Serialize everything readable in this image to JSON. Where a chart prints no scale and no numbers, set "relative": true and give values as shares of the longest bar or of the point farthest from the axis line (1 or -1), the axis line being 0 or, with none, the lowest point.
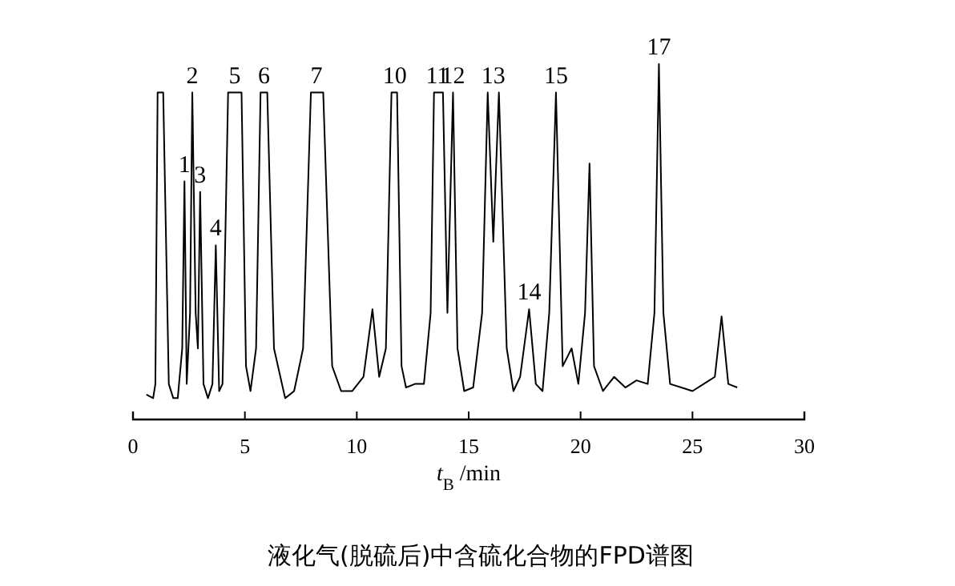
{
  "chart_data": {
    "type": "line",
    "relative": true,
    "xlabel": "t$_{B}$ /min",
    "xlim": [
      0,
      30
    ],
    "xticks": [
      0,
      5,
      10,
      15,
      20,
      25,
      30
    ],
    "series": [
      {
        "color": "#000000",
        "x": [
          0.6,
          0.9,
          1.0,
          1.1,
          1.35,
          1.6,
          1.8,
          2.0,
          2.2,
          2.3,
          2.4,
          2.55,
          2.65,
          2.8,
          2.9,
          3.0,
          3.15,
          3.35,
          3.55,
          3.7,
          3.85,
          4.0,
          4.25,
          4.85,
          5.05,
          5.25,
          5.5,
          5.7,
          6.0,
          6.3,
          6.8,
          7.2,
          7.6,
          7.95,
          8.5,
          8.9,
          9.3,
          9.8,
          10.3,
          10.7,
          11.0,
          11.3,
          11.55,
          11.8,
          12.0,
          12.2,
          12.6,
          13.0,
          13.3,
          13.45,
          13.85,
          14.05,
          14.3,
          14.5,
          14.8,
          15.2,
          15.6,
          15.85,
          16.1,
          16.35,
          16.7,
          17.0,
          17.3,
          17.7,
          18.0,
          18.3,
          18.6,
          18.9,
          19.2,
          19.6,
          19.9,
          20.2,
          20.4,
          20.6,
          21.0,
          21.5,
          22.0,
          22.5,
          23.0,
          23.3,
          23.5,
          23.7,
          24.0,
          24.5,
          25.0,
          25.5,
          26.0,
          26.3,
          26.6,
          27.0
        ],
        "values": [
          0.07,
          0.06,
          0.1,
          0.92,
          0.92,
          0.1,
          0.06,
          0.06,
          0.2,
          0.67,
          0.1,
          0.3,
          0.92,
          0.3,
          0.2,
          0.64,
          0.1,
          0.06,
          0.1,
          0.49,
          0.08,
          0.1,
          0.92,
          0.92,
          0.15,
          0.08,
          0.2,
          0.92,
          0.92,
          0.2,
          0.06,
          0.08,
          0.2,
          0.92,
          0.92,
          0.15,
          0.08,
          0.08,
          0.12,
          0.31,
          0.12,
          0.2,
          0.92,
          0.92,
          0.15,
          0.09,
          0.1,
          0.1,
          0.3,
          0.92,
          0.92,
          0.3,
          0.92,
          0.2,
          0.08,
          0.09,
          0.3,
          0.92,
          0.5,
          0.92,
          0.2,
          0.08,
          0.12,
          0.31,
          0.1,
          0.08,
          0.3,
          0.92,
          0.15,
          0.2,
          0.1,
          0.3,
          0.72,
          0.15,
          0.08,
          0.12,
          0.09,
          0.11,
          0.1,
          0.3,
          1,
          0.3,
          0.1,
          0.09,
          0.08,
          0.1,
          0.12,
          0.29,
          0.1,
          0.09
        ]
      }
    ],
    "annotations": [
      {
        "text": "1",
        "x": 2.3,
        "y": 0.67
      },
      {
        "text": "2",
        "x": 2.65,
        "y": 0.92
      },
      {
        "text": "3",
        "x": 3.0,
        "y": 0.64
      },
      {
        "text": "4",
        "x": 3.7,
        "y": 0.49
      },
      {
        "text": "5",
        "x": 4.55,
        "y": 0.92
      },
      {
        "text": "6",
        "x": 5.85,
        "y": 0.92
      },
      {
        "text": "7",
        "x": 8.2,
        "y": 0.92
      },
      {
        "text": "10",
        "x": 11.7,
        "y": 0.92
      },
      {
        "text": "11",
        "x": 13.6,
        "y": 0.92
      },
      {
        "text": "12",
        "x": 14.3,
        "y": 0.92
      },
      {
        "text": "13",
        "x": 16.1,
        "y": 0.92
      },
      {
        "text": "14",
        "x": 17.7,
        "y": 0.31
      },
      {
        "text": "15",
        "x": 18.9,
        "y": 0.92
      },
      {
        "text": "17",
        "x": 23.5,
        "y": 1
      },
      "液化气(脱硫后)中含硫化合物的FPD谱图"
    ]
  }
}
